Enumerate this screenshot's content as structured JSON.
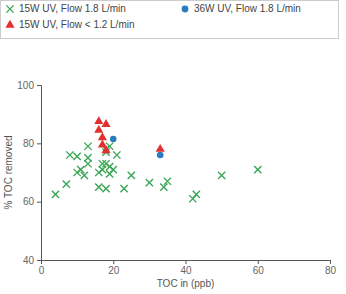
{
  "chart_data": {
    "type": "scatter",
    "x_label": "TOC in (ppb)",
    "y_label": "% TOC removed",
    "xlim": [
      0,
      80
    ],
    "xticks": [
      0,
      20,
      40,
      60,
      80
    ],
    "ylim": [
      40,
      100
    ],
    "yticks": [
      40,
      60,
      80,
      100
    ],
    "grid": false,
    "legend": "top",
    "series": [
      {
        "name": "15W UV, Flow 1.8 L/min",
        "color": "#3aa655",
        "marker": "x",
        "x": [
          4,
          7,
          8,
          10,
          10,
          11,
          12,
          13,
          13,
          13,
          16,
          16,
          17,
          17,
          18,
          18,
          18,
          19,
          18,
          19,
          19,
          20,
          21,
          23,
          25,
          30,
          34,
          35,
          42,
          43,
          50,
          60
        ],
        "values": [
          62.5,
          66,
          76,
          75.5,
          70,
          71,
          69,
          79,
          73,
          75,
          65,
          70,
          71,
          73,
          73,
          77,
          78,
          79,
          64.5,
          69.5,
          72,
          71,
          76,
          64.5,
          69,
          66.5,
          65,
          67,
          61,
          62.5,
          69,
          71
        ]
      },
      {
        "name": "36W UV, Flow 1.8 L/min",
        "color": "#2b7bc0",
        "marker": "circle",
        "x": [
          20,
          33
        ],
        "values": [
          81.5,
          76
        ]
      },
      {
        "name": "15W UV, Flow < 1.2 L/min",
        "color": "#e03030",
        "marker": "triangle",
        "x": [
          16,
          16,
          17,
          17,
          18,
          18,
          33
        ],
        "values": [
          87.5,
          84.5,
          82,
          79.5,
          86.5,
          77.5,
          78
        ]
      }
    ]
  }
}
